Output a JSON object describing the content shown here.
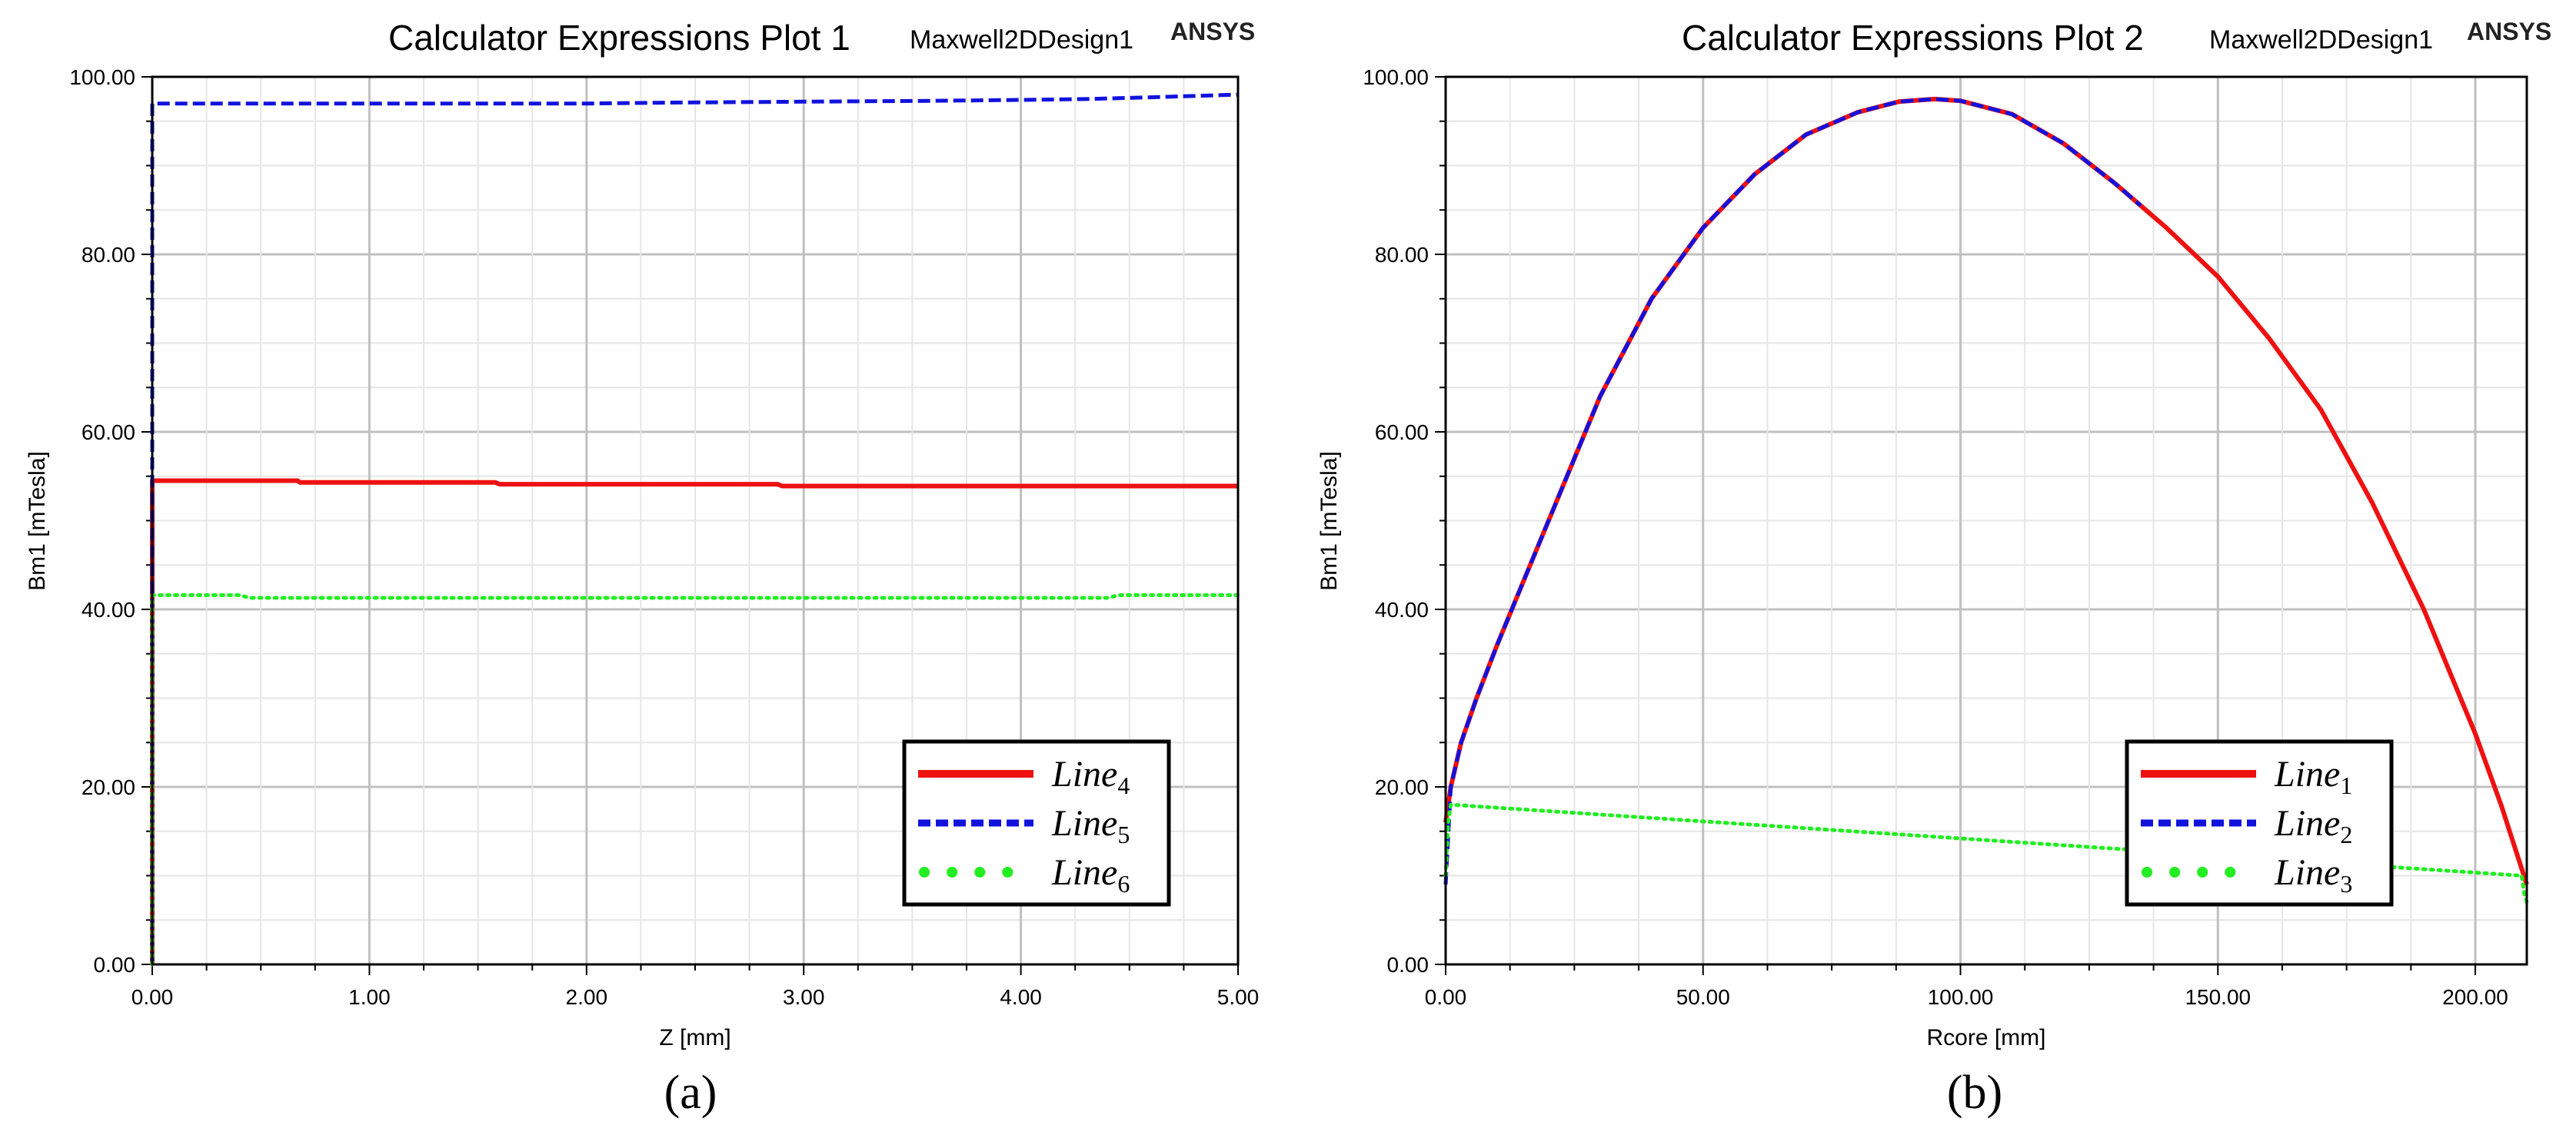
{
  "colors": {
    "line_red": "#ee1111",
    "line_blue": "#1212dd",
    "line_green": "#22ee22",
    "grid_major": "#c0c0c0",
    "grid_minor": "#e6e6e6"
  },
  "brand": "ANSYS",
  "chart_data": [
    {
      "type": "line",
      "title": "Calculator Expressions Plot 1",
      "design": "Maxwell2DDesign1",
      "brand": "ANSYS",
      "caption": "(a)",
      "xlabel": "Z [mm]",
      "ylabel": "Bm1 [mTesla]",
      "xlim": [
        0,
        5
      ],
      "ylim": [
        0,
        100
      ],
      "xticks": [
        "0.00",
        "1.00",
        "2.00",
        "3.00",
        "4.00",
        "5.00"
      ],
      "yticks": [
        "0.00",
        "20.00",
        "40.00",
        "60.00",
        "80.00",
        "100.00"
      ],
      "legend_position": "bottom-right",
      "series": [
        {
          "name": "Line",
          "sub": "4",
          "color": "#ee1111",
          "style": "solid",
          "x": [
            0,
            0,
            0.02,
            0.5,
            0.67,
            0.68,
            1.2,
            1.58,
            1.6,
            2.4,
            2.88,
            2.9,
            3.6,
            4.4,
            5.0
          ],
          "y": [
            0,
            54.5,
            54.5,
            54.5,
            54.5,
            54.3,
            54.3,
            54.3,
            54.1,
            54.1,
            54.1,
            53.9,
            53.9,
            53.9,
            53.9
          ]
        },
        {
          "name": "Line",
          "sub": "5",
          "color": "#1212dd",
          "style": "dash",
          "x": [
            0,
            0,
            0.02,
            1.0,
            2.0,
            2.4,
            3.0,
            3.6,
            4.0,
            4.3,
            4.6,
            5.0
          ],
          "y": [
            0,
            97.0,
            97.0,
            97.0,
            97.0,
            97.1,
            97.2,
            97.3,
            97.4,
            97.5,
            97.7,
            98.0
          ]
        },
        {
          "name": "Line",
          "sub": "6",
          "color": "#22ee22",
          "style": "dot",
          "x": [
            0,
            0,
            0.02,
            0.4,
            0.45,
            1.5,
            2.5,
            3.5,
            4.4,
            4.45,
            5.0
          ],
          "y": [
            0,
            41.6,
            41.6,
            41.6,
            41.3,
            41.3,
            41.3,
            41.3,
            41.3,
            41.6,
            41.6
          ]
        }
      ]
    },
    {
      "type": "line",
      "title": "Calculator Expressions Plot 2",
      "design": "Maxwell2DDesign1",
      "brand": "ANSYS",
      "caption": "(b)",
      "xlabel": "Rcore [mm]",
      "ylabel": "Bm1 [mTesla]",
      "xlim": [
        0,
        210
      ],
      "ylim": [
        0,
        100
      ],
      "xticks": [
        "0.00",
        "50.00",
        "100.00",
        "150.00",
        "200.00"
      ],
      "yticks": [
        "0.00",
        "20.00",
        "40.00",
        "60.00",
        "80.00",
        "100.00"
      ],
      "legend_position": "bottom-right",
      "series": [
        {
          "name": "Line",
          "sub": "1",
          "color": "#ee1111",
          "style": "solid",
          "x": [
            0,
            1,
            3,
            6,
            10,
            15,
            20,
            30,
            40,
            50,
            60,
            70,
            80,
            88,
            95,
            100,
            110,
            120,
            130,
            140,
            150,
            160,
            170,
            180,
            190,
            200,
            205,
            210
          ],
          "y": [
            16,
            20,
            25,
            30,
            36,
            43,
            50,
            64,
            75,
            83,
            89,
            93.5,
            96,
            97.2,
            97.5,
            97.3,
            95.8,
            92.5,
            88,
            83,
            77.5,
            70.5,
            62.5,
            52,
            40,
            26,
            18,
            9
          ]
        },
        {
          "name": "Line",
          "sub": "2",
          "color": "#1212dd",
          "style": "dash",
          "x": [
            0,
            1,
            3,
            6,
            10,
            15,
            20,
            30,
            40,
            50,
            60,
            70,
            80,
            88,
            95,
            100,
            110,
            120,
            130,
            135
          ],
          "y": [
            9,
            20,
            25,
            30,
            36,
            43,
            50,
            64,
            75,
            83,
            89,
            93.5,
            96,
            97.2,
            97.5,
            97.3,
            95.8,
            92.5,
            88,
            85.5
          ]
        },
        {
          "name": "Line",
          "sub": "3",
          "color": "#22ee22",
          "style": "dot",
          "x": [
            0,
            0.5,
            1,
            209,
            209.5,
            210
          ],
          "y": [
            10,
            16,
            18,
            10,
            8,
            7
          ]
        }
      ]
    }
  ]
}
